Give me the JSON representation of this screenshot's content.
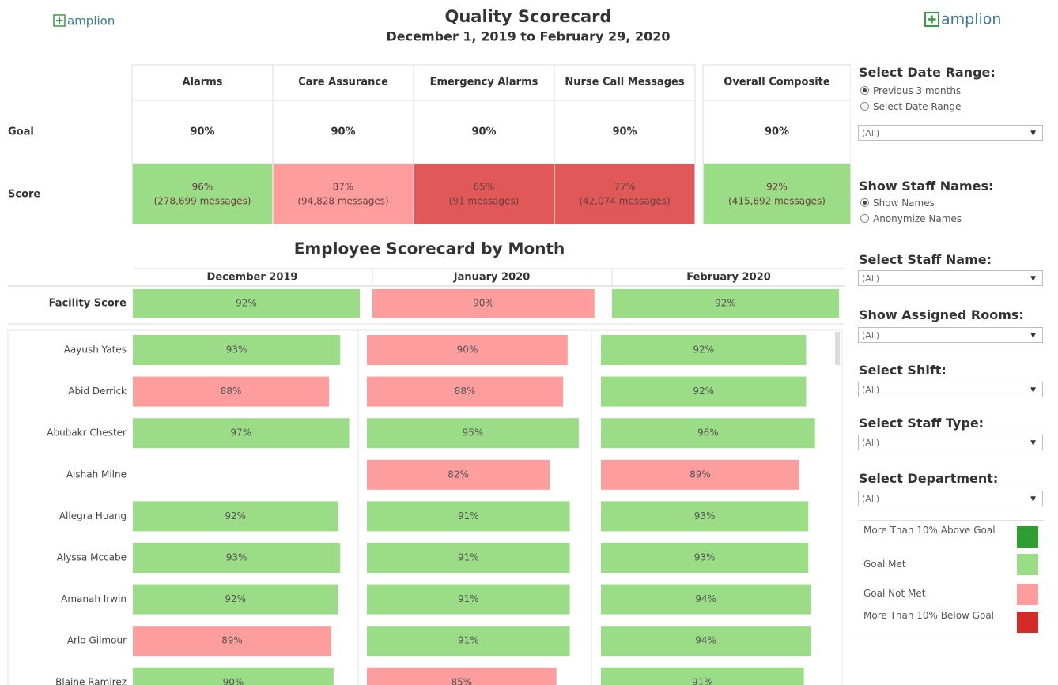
{
  "header": {
    "logo_left": "amplion",
    "logo_right": "amplion",
    "title": "Quality Scorecard",
    "subtitle": "December 1, 2019 to February 29, 2020"
  },
  "quality_scorecard": {
    "columns": [
      "Alarms",
      "Care Assurance",
      "Emergency Alarms",
      "Nurse Call Messages",
      "Overall Composite"
    ],
    "row_labels": [
      "Goal",
      "Score"
    ],
    "goal": [
      "90%",
      "90%",
      "90%",
      "90%",
      "90%"
    ],
    "score": [
      "96%",
      "87%",
      "65%",
      "77%",
      "92%"
    ],
    "messages": [
      "(278,699 messages)",
      "(94,828 messages)",
      "(91 messages)",
      "(42,074 messages)",
      "(415,692 messages)"
    ],
    "colors": [
      "#9bdc86",
      "#fd9d9d",
      "#e05858",
      "#e05858",
      "#9bdc86"
    ]
  },
  "chart_data": {
    "type": "bar",
    "orientation": "horizontal",
    "title": "Employee Scorecard by Month",
    "categories": [
      "Aayush Yates",
      "Abid Derrick",
      "Abubakr Chester",
      "Aishah Milne",
      "Allegra Huang",
      "Alyssa Mccabe",
      "Amanah Irwin",
      "Arlo Gilmour",
      "Blaine Ramirez"
    ],
    "series": [
      {
        "name": "December 2019",
        "values": [
          93,
          88,
          97,
          null,
          92,
          93,
          92,
          89,
          90
        ],
        "value_labels": [
          "93%",
          "88%",
          "97%",
          null,
          "92%",
          "93%",
          "92%",
          "89%",
          "90%"
        ],
        "colors": [
          "#9bdc86",
          "#fd9d9d",
          "#9bdc86",
          null,
          "#9bdc86",
          "#9bdc86",
          "#9bdc86",
          "#fd9d9d",
          "#9bdc86"
        ]
      },
      {
        "name": "January 2020",
        "values": [
          90,
          88,
          95,
          82,
          91,
          91,
          91,
          91,
          85
        ],
        "value_labels": [
          "90%",
          "88%",
          "95%",
          "82%",
          "91%",
          "91%",
          "91%",
          "91%",
          "85%"
        ],
        "colors": [
          "#fd9d9d",
          "#fd9d9d",
          "#9bdc86",
          "#fd9d9d",
          "#9bdc86",
          "#9bdc86",
          "#9bdc86",
          "#9bdc86",
          "#fd9d9d"
        ]
      },
      {
        "name": "February 2020",
        "values": [
          92,
          92,
          96,
          89,
          93,
          93,
          94,
          94,
          91
        ],
        "value_labels": [
          "92%",
          "92%",
          "96%",
          "89%",
          "93%",
          "93%",
          "94%",
          "94%",
          "91%"
        ],
        "colors": [
          "#9bdc86",
          "#9bdc86",
          "#9bdc86",
          "#fd9d9d",
          "#9bdc86",
          "#9bdc86",
          "#9bdc86",
          "#9bdc86",
          "#9bdc86"
        ]
      }
    ],
    "facility": {
      "label": "Facility Score",
      "values": [
        92,
        90,
        92
      ],
      "value_labels": [
        "92%",
        "90%",
        "92%"
      ],
      "colors": [
        "#9bdc86",
        "#fd9d9d",
        "#9bdc86"
      ]
    },
    "xlim": [
      0,
      100
    ]
  },
  "filters": {
    "date_range": {
      "label": "Select Date Range:",
      "options": [
        "Previous 3 months",
        "Select Date Range"
      ],
      "selected": 0,
      "dropdown": "(All)"
    },
    "staff_names": {
      "label": "Show Staff Names:",
      "options": [
        "Show Names",
        "Anonymize Names"
      ],
      "selected": 0
    },
    "dropdowns": [
      {
        "label": "Select Staff Name:",
        "value": "(All)"
      },
      {
        "label": "Show Assigned Rooms:",
        "value": "(All)"
      },
      {
        "label": "Select Shift:",
        "value": "(All)"
      },
      {
        "label": "Select Staff Type:",
        "value": "(All)"
      },
      {
        "label": "Select Department:",
        "value": "(All)"
      }
    ]
  },
  "legend": [
    {
      "label": "More Than 10% Above Goal",
      "color": "#2e9e33"
    },
    {
      "label": "Goal Met",
      "color": "#9bdc86"
    },
    {
      "label": "Goal Not Met",
      "color": "#fd9d9d"
    },
    {
      "label": "More Than 10% Below Goal",
      "color": "#d42a2a"
    }
  ]
}
